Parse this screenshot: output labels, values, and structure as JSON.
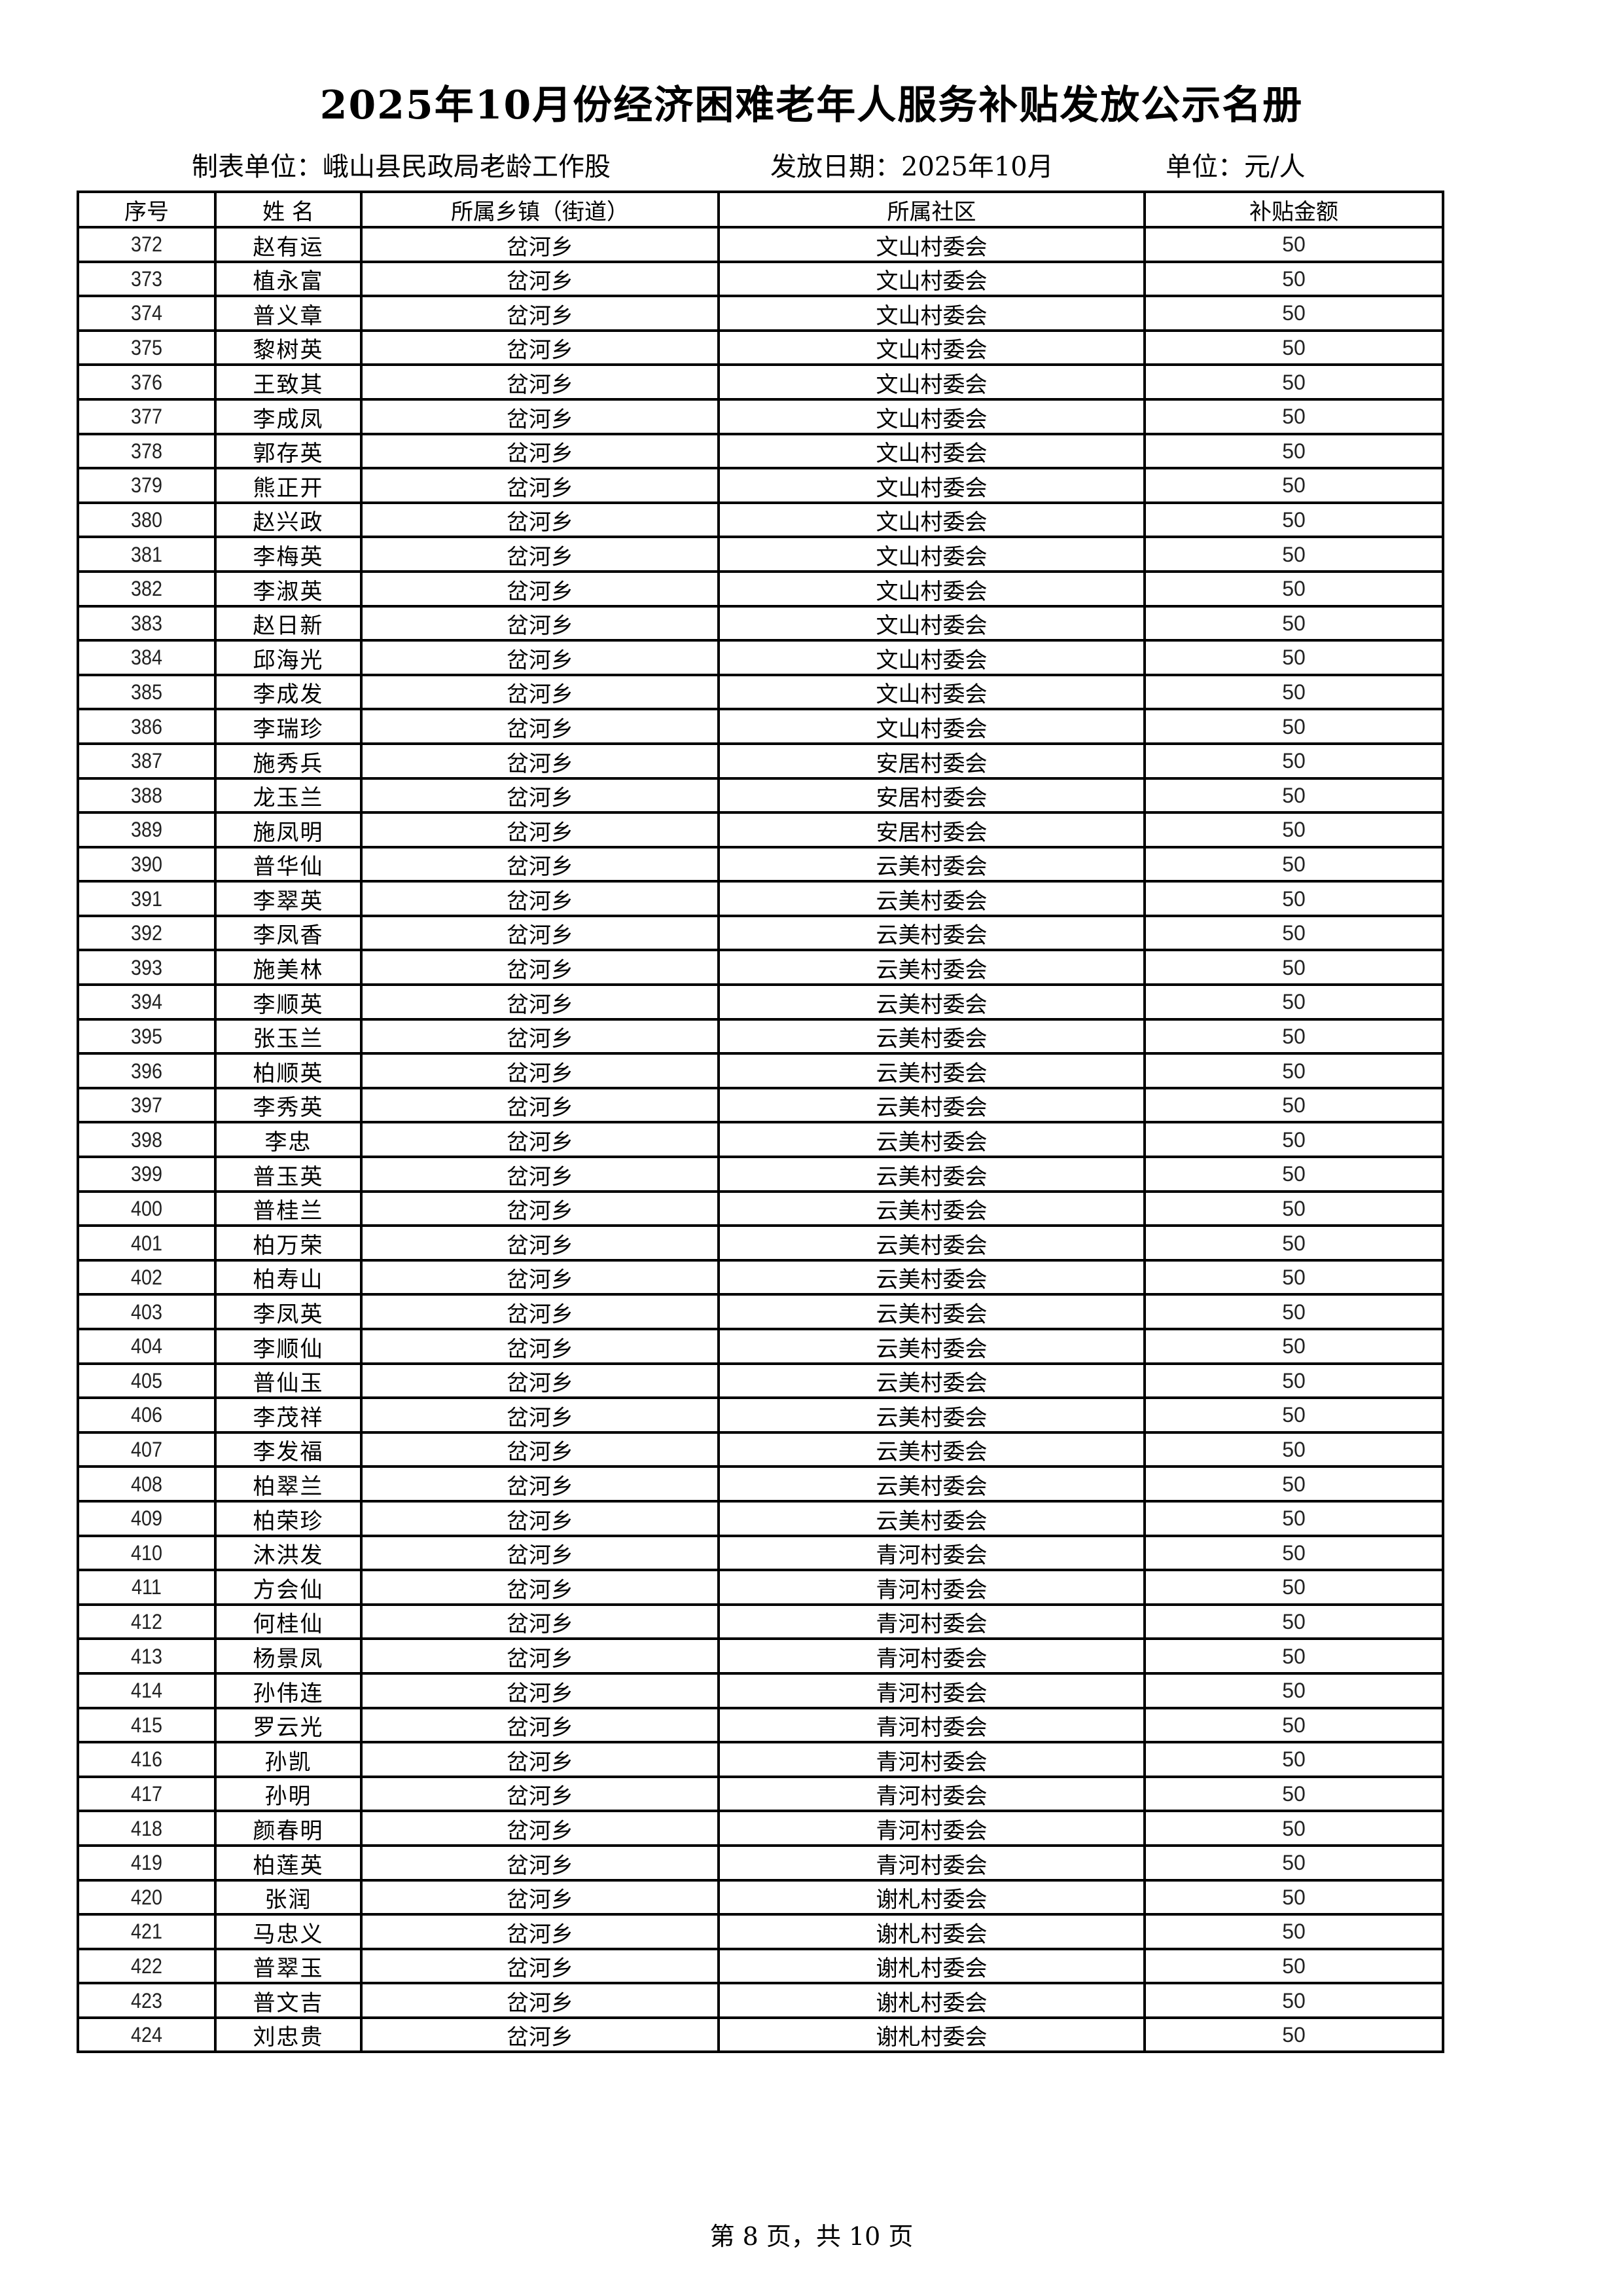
{
  "title": "2025年10月份经济困难老年人服务补贴发放公示名册",
  "meta": {
    "unit_label": "制表单位：",
    "unit_value": "峨山县民政局老龄工作股",
    "date_label": "发放日期：",
    "date_value": "2025年10月",
    "currency_label": "单位：",
    "currency_value": "元/人"
  },
  "table": {
    "headers": [
      "序号",
      "姓 名",
      "所属乡镇（街道）",
      "所属社区",
      "补贴金额"
    ],
    "rows": [
      [
        "372",
        "赵有运",
        "岔河乡",
        "文山村委会",
        "50"
      ],
      [
        "373",
        "植永富",
        "岔河乡",
        "文山村委会",
        "50"
      ],
      [
        "374",
        "普义章",
        "岔河乡",
        "文山村委会",
        "50"
      ],
      [
        "375",
        "黎树英",
        "岔河乡",
        "文山村委会",
        "50"
      ],
      [
        "376",
        "王致其",
        "岔河乡",
        "文山村委会",
        "50"
      ],
      [
        "377",
        "李成凤",
        "岔河乡",
        "文山村委会",
        "50"
      ],
      [
        "378",
        "郭存英",
        "岔河乡",
        "文山村委会",
        "50"
      ],
      [
        "379",
        "熊正开",
        "岔河乡",
        "文山村委会",
        "50"
      ],
      [
        "380",
        "赵兴政",
        "岔河乡",
        "文山村委会",
        "50"
      ],
      [
        "381",
        "李梅英",
        "岔河乡",
        "文山村委会",
        "50"
      ],
      [
        "382",
        "李淑英",
        "岔河乡",
        "文山村委会",
        "50"
      ],
      [
        "383",
        "赵日新",
        "岔河乡",
        "文山村委会",
        "50"
      ],
      [
        "384",
        "邱海光",
        "岔河乡",
        "文山村委会",
        "50"
      ],
      [
        "385",
        "李成发",
        "岔河乡",
        "文山村委会",
        "50"
      ],
      [
        "386",
        "李瑞珍",
        "岔河乡",
        "文山村委会",
        "50"
      ],
      [
        "387",
        "施秀兵",
        "岔河乡",
        "安居村委会",
        "50"
      ],
      [
        "388",
        "龙玉兰",
        "岔河乡",
        "安居村委会",
        "50"
      ],
      [
        "389",
        "施凤明",
        "岔河乡",
        "安居村委会",
        "50"
      ],
      [
        "390",
        "普华仙",
        "岔河乡",
        "云美村委会",
        "50"
      ],
      [
        "391",
        "李翠英",
        "岔河乡",
        "云美村委会",
        "50"
      ],
      [
        "392",
        "李凤香",
        "岔河乡",
        "云美村委会",
        "50"
      ],
      [
        "393",
        "施美林",
        "岔河乡",
        "云美村委会",
        "50"
      ],
      [
        "394",
        "李顺英",
        "岔河乡",
        "云美村委会",
        "50"
      ],
      [
        "395",
        "张玉兰",
        "岔河乡",
        "云美村委会",
        "50"
      ],
      [
        "396",
        "柏顺英",
        "岔河乡",
        "云美村委会",
        "50"
      ],
      [
        "397",
        "李秀英",
        "岔河乡",
        "云美村委会",
        "50"
      ],
      [
        "398",
        "李忠",
        "岔河乡",
        "云美村委会",
        "50"
      ],
      [
        "399",
        "普玉英",
        "岔河乡",
        "云美村委会",
        "50"
      ],
      [
        "400",
        "普桂兰",
        "岔河乡",
        "云美村委会",
        "50"
      ],
      [
        "401",
        "柏万荣",
        "岔河乡",
        "云美村委会",
        "50"
      ],
      [
        "402",
        "柏寿山",
        "岔河乡",
        "云美村委会",
        "50"
      ],
      [
        "403",
        "李凤英",
        "岔河乡",
        "云美村委会",
        "50"
      ],
      [
        "404",
        "李顺仙",
        "岔河乡",
        "云美村委会",
        "50"
      ],
      [
        "405",
        "普仙玉",
        "岔河乡",
        "云美村委会",
        "50"
      ],
      [
        "406",
        "李茂祥",
        "岔河乡",
        "云美村委会",
        "50"
      ],
      [
        "407",
        "李发福",
        "岔河乡",
        "云美村委会",
        "50"
      ],
      [
        "408",
        "柏翠兰",
        "岔河乡",
        "云美村委会",
        "50"
      ],
      [
        "409",
        "柏荣珍",
        "岔河乡",
        "云美村委会",
        "50"
      ],
      [
        "410",
        "沐洪发",
        "岔河乡",
        "青河村委会",
        "50"
      ],
      [
        "411",
        "方会仙",
        "岔河乡",
        "青河村委会",
        "50"
      ],
      [
        "412",
        "何桂仙",
        "岔河乡",
        "青河村委会",
        "50"
      ],
      [
        "413",
        "杨景凤",
        "岔河乡",
        "青河村委会",
        "50"
      ],
      [
        "414",
        "孙伟连",
        "岔河乡",
        "青河村委会",
        "50"
      ],
      [
        "415",
        "罗云光",
        "岔河乡",
        "青河村委会",
        "50"
      ],
      [
        "416",
        "孙凯",
        "岔河乡",
        "青河村委会",
        "50"
      ],
      [
        "417",
        "孙明",
        "岔河乡",
        "青河村委会",
        "50"
      ],
      [
        "418",
        "颜春明",
        "岔河乡",
        "青河村委会",
        "50"
      ],
      [
        "419",
        "柏莲英",
        "岔河乡",
        "青河村委会",
        "50"
      ],
      [
        "420",
        "张润",
        "岔河乡",
        "谢札村委会",
        "50"
      ],
      [
        "421",
        "马忠义",
        "岔河乡",
        "谢札村委会",
        "50"
      ],
      [
        "422",
        "普翠玉",
        "岔河乡",
        "谢札村委会",
        "50"
      ],
      [
        "423",
        "普文吉",
        "岔河乡",
        "谢札村委会",
        "50"
      ],
      [
        "424",
        "刘忠贵",
        "岔河乡",
        "谢札村委会",
        "50"
      ]
    ]
  },
  "footer": "第 8 页，共 10 页"
}
